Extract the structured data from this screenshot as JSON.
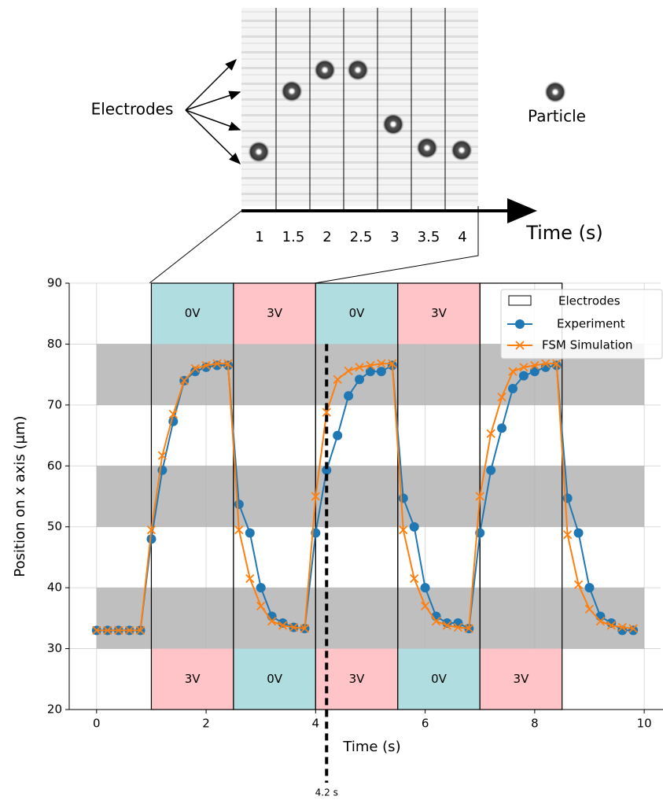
{
  "inset": {
    "electrodes_label": "Electrodes",
    "particle_label": "Particle",
    "time_label": "Time (s)",
    "frame_times": [
      "1",
      "1.5",
      "2",
      "2.5",
      "3",
      "3.5",
      "4"
    ]
  },
  "chart_data": {
    "type": "line",
    "xlabel": "Time (s)",
    "ylabel": "Position on x axis (μm)",
    "xlim": [
      -0.5,
      10.3
    ],
    "ylim": [
      20,
      90
    ],
    "xticks": [
      0,
      2,
      4,
      6,
      8,
      10
    ],
    "yticks": [
      20,
      30,
      40,
      50,
      60,
      70,
      80,
      90
    ],
    "grid": true,
    "legend": "upper right",
    "bands": [
      [
        30,
        40
      ],
      [
        50,
        60
      ],
      [
        70,
        80
      ]
    ],
    "band_x": [
      0,
      10
    ],
    "band_color": "#bfbfbf",
    "electrode_rows": {
      "top": [
        80,
        90
      ],
      "bottom": [
        20,
        30
      ]
    },
    "electrodes_name": "Electrodes",
    "electrodes": [
      {
        "start": 1,
        "end": 2.5,
        "top": "0V",
        "top_color": "#b0dde0",
        "bottom": "3V",
        "bottom_color": "#ffc4c8"
      },
      {
        "start": 2.5,
        "end": 4,
        "top": "3V",
        "top_color": "#ffc4c8",
        "bottom": "0V",
        "bottom_color": "#b0dde0"
      },
      {
        "start": 4,
        "end": 5.5,
        "top": "0V",
        "top_color": "#b0dde0",
        "bottom": "3V",
        "bottom_color": "#ffc4c8"
      },
      {
        "start": 5.5,
        "end": 7,
        "top": "3V",
        "top_color": "#ffc4c8",
        "bottom": "0V",
        "bottom_color": "#b0dde0"
      },
      {
        "start": 7,
        "end": 8.5,
        "top": null,
        "top_color": null,
        "bottom": "3V",
        "bottom_color": "#ffc4c8"
      }
    ],
    "annotation": {
      "x": 4.2,
      "label": "4.2 s",
      "from": 80
    },
    "x": [
      0,
      0.2,
      0.4,
      0.6,
      0.8,
      1,
      1.2,
      1.4,
      1.6,
      1.8,
      2,
      2.2,
      2.4,
      2.6,
      2.8,
      3,
      3.2,
      3.4,
      3.6,
      3.8,
      4,
      4.2,
      4.4,
      4.6,
      4.8,
      5,
      5.2,
      5.4,
      5.6,
      5.8,
      6,
      6.2,
      6.4,
      6.6,
      6.8,
      7,
      7.2,
      7.4,
      7.6,
      7.8,
      8,
      8.2,
      8.4,
      8.6,
      8.8,
      9,
      9.2,
      9.4,
      9.6,
      9.8
    ],
    "series": [
      {
        "name": "Experiment",
        "color": "#1f77b4",
        "marker": "o",
        "values": [
          33,
          33,
          33,
          33,
          33,
          48,
          59.3,
          67.3,
          74,
          75.5,
          76.2,
          76.5,
          76.5,
          53.7,
          49,
          40,
          35.3,
          34.2,
          33.5,
          33.3,
          49,
          59.3,
          65,
          71.5,
          74.2,
          75.5,
          75.5,
          76.5,
          54.7,
          50,
          40,
          35.3,
          34.2,
          34.2,
          33.3,
          49,
          59.3,
          66.2,
          72.7,
          74.8,
          75.5,
          76.2,
          76.5,
          54.7,
          49,
          40,
          35.3,
          34.2,
          33,
          33
        ]
      },
      {
        "name": "FSM Simulation",
        "color": "#ff7f0e",
        "marker": "x",
        "values": [
          33,
          33,
          33,
          33,
          33,
          49.5,
          61.7,
          68.5,
          74,
          76,
          76.5,
          76.8,
          76.8,
          49.5,
          41.5,
          37,
          34.5,
          33.8,
          33.5,
          33.3,
          55,
          68.8,
          74.2,
          75.6,
          76.2,
          76.5,
          76.8,
          76.8,
          49.5,
          41.5,
          37,
          34.5,
          33.8,
          33.5,
          33.3,
          55,
          65.3,
          71.3,
          75.5,
          76.2,
          76.5,
          76.8,
          76.8,
          48.7,
          40.5,
          36.5,
          34.5,
          33.8,
          33.5,
          33.3
        ]
      }
    ]
  }
}
